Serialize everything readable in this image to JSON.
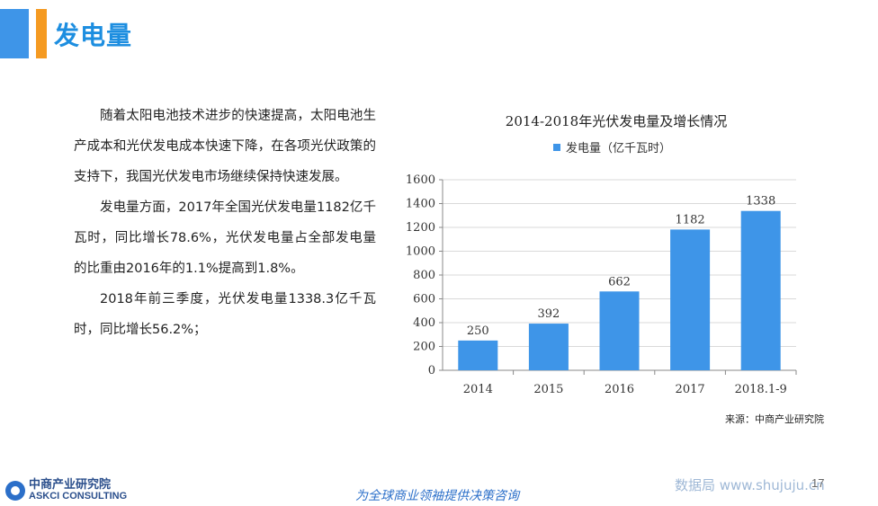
{
  "header": {
    "title": "发电量"
  },
  "body": {
    "paragraphs": [
      "随着太阳电池技术进步的快速提高，太阳电池生产成本和光伏发电成本快速下降，在各项光伏政策的支持下，我国光伏发电市场继续保持快速发展。",
      "发电量方面，2017年全国光伏发电量1182亿千瓦时，同比增长78.6%，光伏发电量占全部发电量的比重由2016年的1.1%提高到1.8%。",
      "2018年前三季度，光伏发电量1338.3亿千瓦时，同比增长56.2%；"
    ]
  },
  "chart_data": {
    "type": "bar",
    "title": "2014-2018年光伏发电量及增长情况",
    "categories": [
      "2014",
      "2015",
      "2016",
      "2017",
      "2018.1-9"
    ],
    "series": [
      {
        "name": "发电量（亿千瓦时）",
        "values": [
          250,
          392,
          662,
          1182,
          1338
        ],
        "color": "#3e95e8"
      }
    ],
    "ylim": [
      0,
      1600
    ],
    "yticks": [
      "0",
      "200",
      "400",
      "600",
      "800",
      "1000",
      "1200",
      "1400",
      "1600"
    ],
    "grid": true,
    "legend_position": "top",
    "source": "来源：中商产业研究院"
  },
  "footer": {
    "logo_cn": "中商产业研究院",
    "logo_en": "ASKCI CONSULTING",
    "slogan": "为全球商业领袖提供决策咨询",
    "watermark": "数据局 www.shujuju.cn",
    "page_number": "17"
  }
}
